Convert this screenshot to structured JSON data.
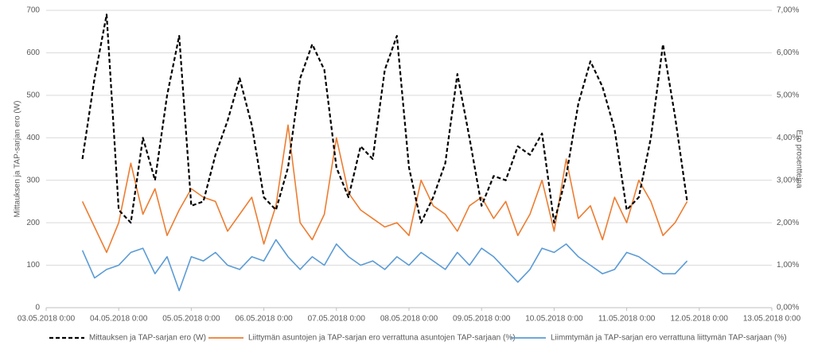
{
  "chart_data": {
    "type": "line",
    "y_label": "Mittauksen ja TAP-sarjan ero (W)",
    "y2_label": "Ero prosentteina",
    "xlim": [
      "03.05.2018 0:00",
      "13.05.2018 0:00"
    ],
    "xticks": [
      "03.05.2018 0:00",
      "04.05.2018 0:00",
      "05.05.2018 0:00",
      "06.05.2018 0:00",
      "07.05.2018 0:00",
      "08.05.2018 0:00",
      "09.05.2018 0:00",
      "10.05.2018 0:00",
      "11.05.2018 0:00",
      "12.05.2018 0:00",
      "13.05.2018 0:00"
    ],
    "ylim": [
      0,
      700
    ],
    "yticks": [
      0,
      100,
      200,
      300,
      400,
      500,
      600,
      700
    ],
    "y2lim": [
      0,
      7
    ],
    "y2ticks": [
      {
        "value": 0,
        "label": "0,00%"
      },
      {
        "value": 1,
        "label": "1,00%"
      },
      {
        "value": 2,
        "label": "2,00%"
      },
      {
        "value": 3,
        "label": "3,00%"
      },
      {
        "value": 4,
        "label": "4,00%"
      },
      {
        "value": 5,
        "label": "5,00%"
      },
      {
        "value": 6,
        "label": "6,00%"
      },
      {
        "value": 7,
        "label": "7,00%"
      }
    ],
    "grid": true,
    "legend": "bottom",
    "x": [
      "03.05.2018 12:00",
      "03.05.2018 16:00",
      "03.05.2018 20:00",
      "04.05.2018 0:00",
      "04.05.2018 4:00",
      "04.05.2018 8:00",
      "04.05.2018 12:00",
      "04.05.2018 16:00",
      "04.05.2018 20:00",
      "05.05.2018 0:00",
      "05.05.2018 4:00",
      "05.05.2018 8:00",
      "05.05.2018 12:00",
      "05.05.2018 16:00",
      "05.05.2018 20:00",
      "06.05.2018 0:00",
      "06.05.2018 4:00",
      "06.05.2018 8:00",
      "06.05.2018 12:00",
      "06.05.2018 16:00",
      "06.05.2018 20:00",
      "07.05.2018 0:00",
      "07.05.2018 4:00",
      "07.05.2018 8:00",
      "07.05.2018 12:00",
      "07.05.2018 16:00",
      "07.05.2018 20:00",
      "08.05.2018 0:00",
      "08.05.2018 4:00",
      "08.05.2018 8:00",
      "08.05.2018 12:00",
      "08.05.2018 16:00",
      "08.05.2018 20:00",
      "09.05.2018 0:00",
      "09.05.2018 4:00",
      "09.05.2018 8:00",
      "09.05.2018 12:00",
      "09.05.2018 16:00",
      "09.05.2018 20:00",
      "10.05.2018 0:00",
      "10.05.2018 4:00",
      "10.05.2018 8:00",
      "10.05.2018 12:00",
      "10.05.2018 16:00",
      "10.05.2018 20:00",
      "11.05.2018 0:00",
      "11.05.2018 4:00",
      "11.05.2018 8:00",
      "11.05.2018 12:00",
      "11.05.2018 16:00",
      "11.05.2018 20:00"
    ],
    "series": [
      {
        "name": "Mittauksen ja TAP-sarjan ero (W)",
        "color": "#000000",
        "line_style": "dashed",
        "values": [
          350,
          540,
          690,
          230,
          200,
          400,
          300,
          500,
          640,
          240,
          250,
          360,
          440,
          540,
          430,
          260,
          230,
          330,
          540,
          620,
          560,
          330,
          260,
          380,
          350,
          560,
          640,
          330,
          200,
          260,
          340,
          550,
          400,
          240,
          310,
          300,
          380,
          360,
          410,
          200,
          310,
          480,
          580,
          520,
          420,
          230,
          260,
          400,
          620,
          450,
          250
        ]
      },
      {
        "name": "Liittymän asuntojen ja TAP-sarjan ero verrattuna asuntojen TAP-sarjaan (%)",
        "color": "#ed7d31",
        "line_style": "solid",
        "axis": "y2",
        "values": [
          2.5,
          1.9,
          1.3,
          2.0,
          3.4,
          2.2,
          2.8,
          1.7,
          2.3,
          2.8,
          2.6,
          2.5,
          1.8,
          2.2,
          2.6,
          1.5,
          2.4,
          4.3,
          2.0,
          1.6,
          2.2,
          4.0,
          2.7,
          2.3,
          2.1,
          1.9,
          2.0,
          1.7,
          3.0,
          2.4,
          2.2,
          1.8,
          2.4,
          2.6,
          2.1,
          2.5,
          1.7,
          2.2,
          3.0,
          1.8,
          3.5,
          2.1,
          2.4,
          1.6,
          2.6,
          2.0,
          3.0,
          2.5,
          1.7,
          2.0,
          2.5
        ]
      },
      {
        "name": "Liimmtymän ja TAP-sarjan ero verrattuna liittymän TAP-sarjaan (%)",
        "color": "#5b9bd5",
        "line_style": "solid",
        "axis": "y2",
        "values": [
          1.35,
          0.7,
          0.9,
          1.0,
          1.3,
          1.4,
          0.8,
          1.2,
          0.4,
          1.2,
          1.1,
          1.3,
          1.0,
          0.9,
          1.2,
          1.1,
          1.6,
          1.2,
          0.9,
          1.2,
          1.0,
          1.5,
          1.2,
          1.0,
          1.1,
          0.9,
          1.2,
          1.0,
          1.3,
          1.1,
          0.9,
          1.3,
          1.0,
          1.4,
          1.2,
          0.9,
          0.6,
          0.9,
          1.4,
          1.3,
          1.5,
          1.2,
          1.0,
          0.8,
          0.9,
          1.3,
          1.2,
          1.0,
          0.8,
          0.8,
          1.1
        ]
      }
    ]
  }
}
